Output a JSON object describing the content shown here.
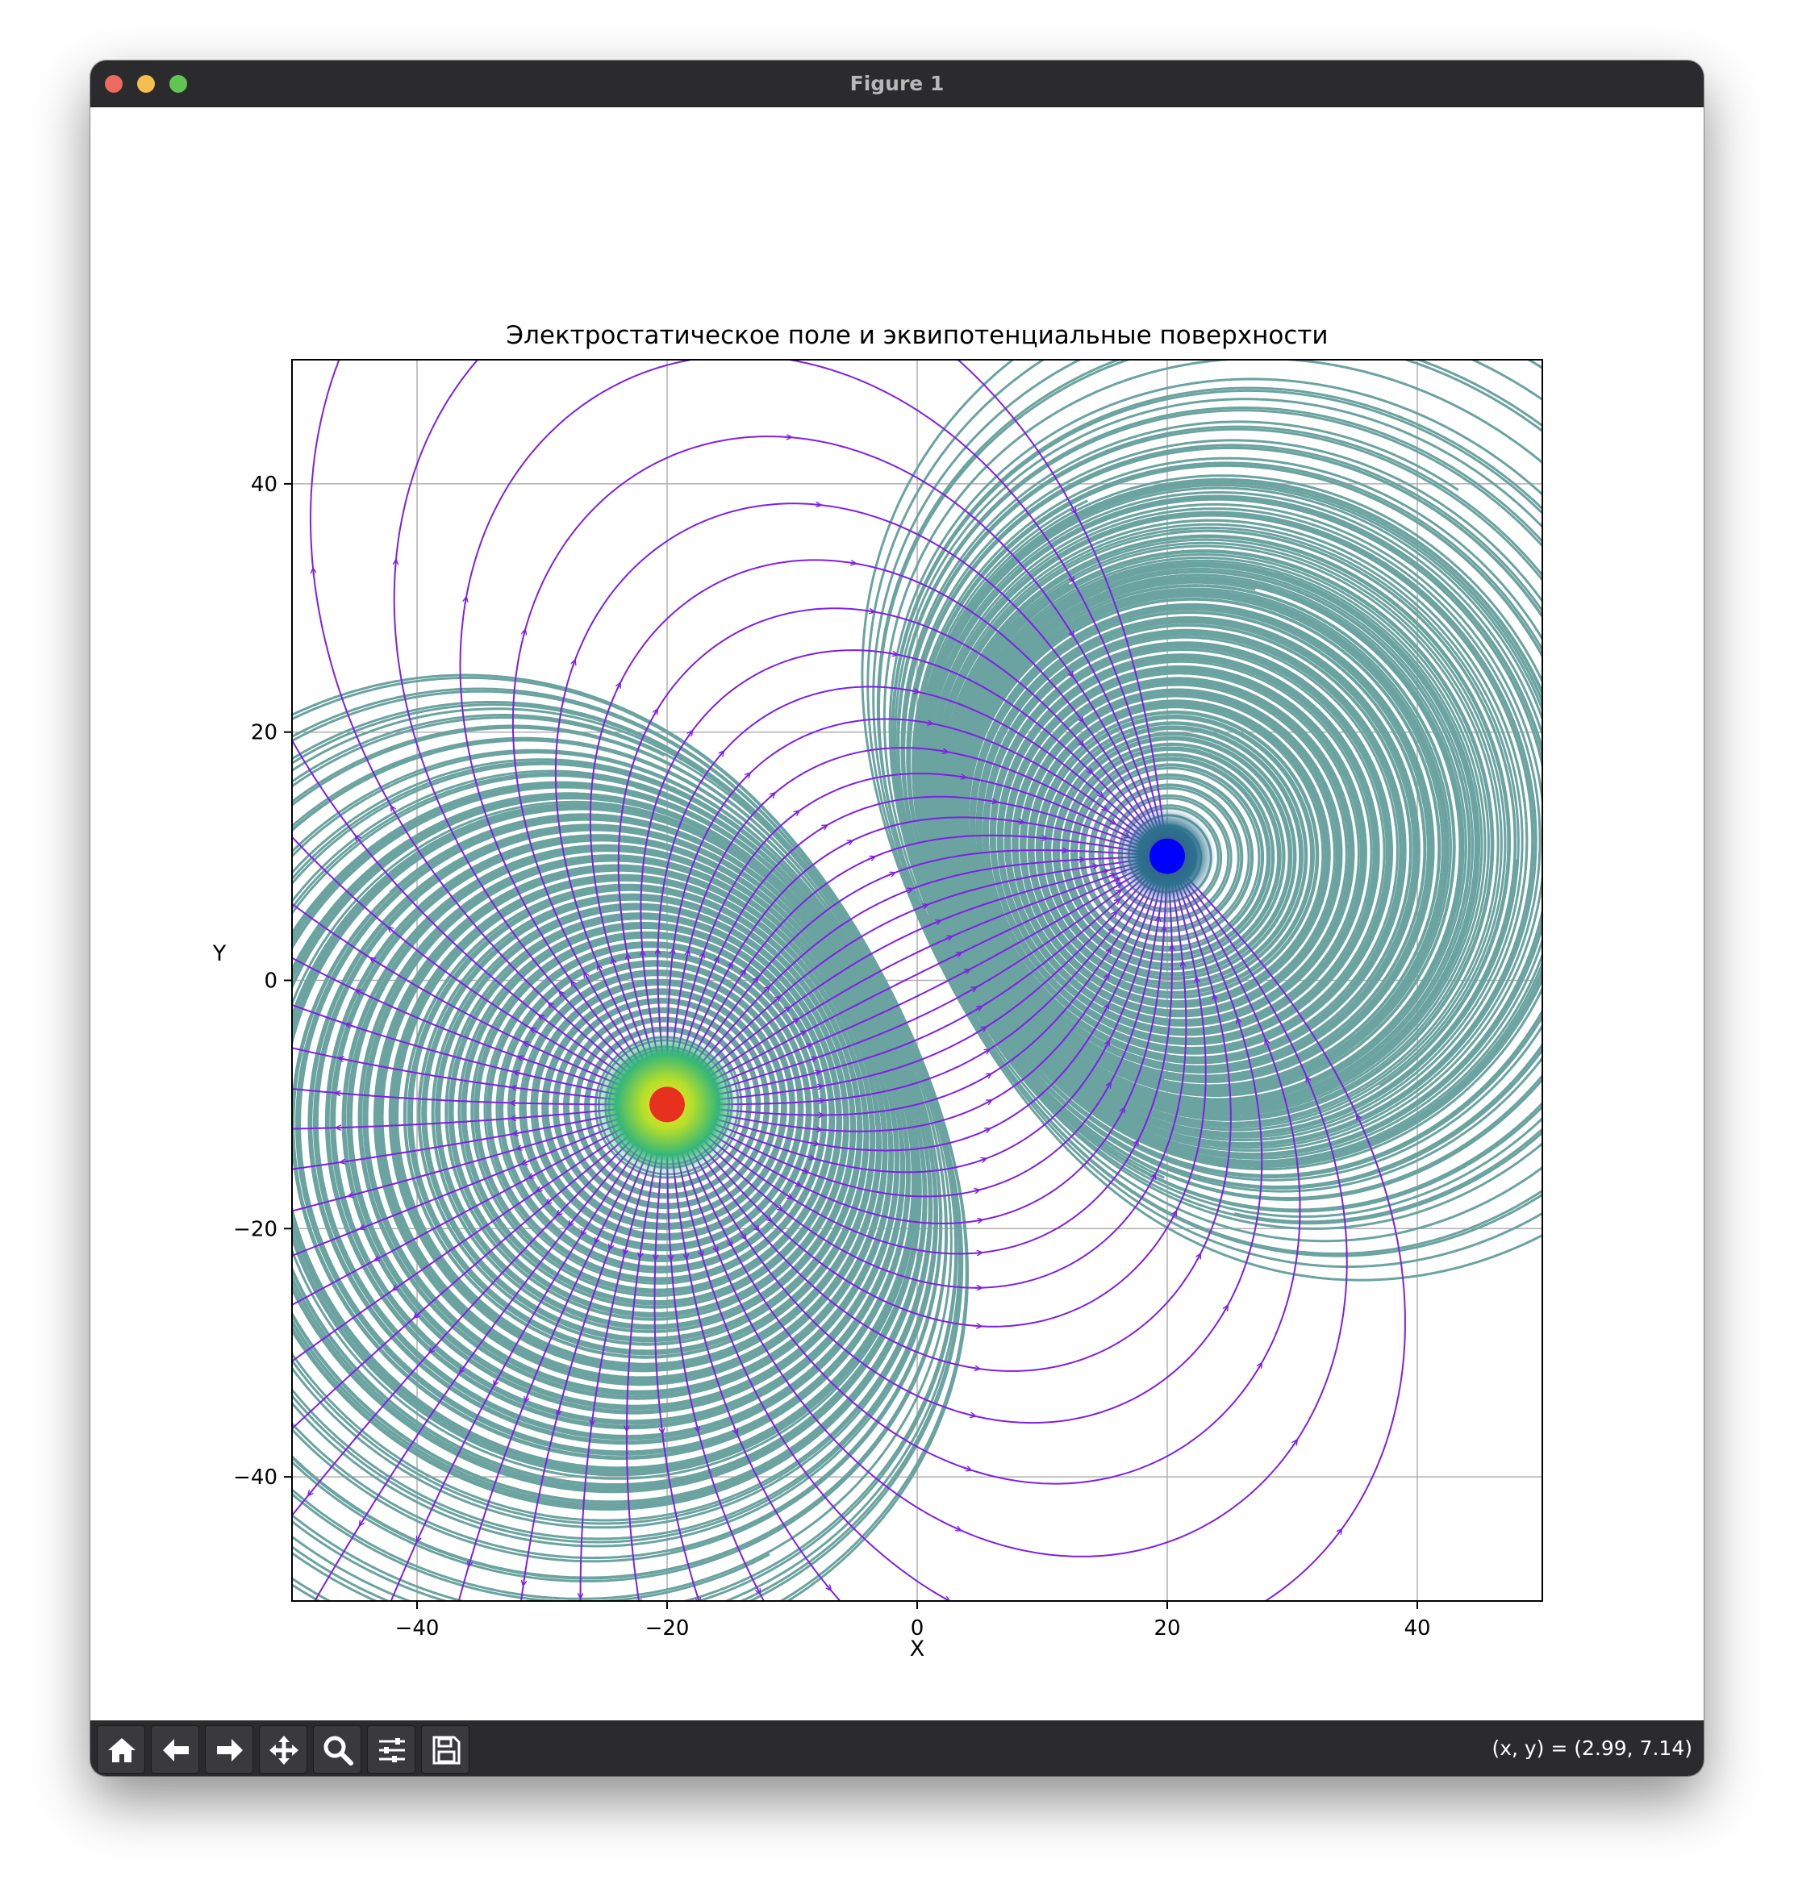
{
  "window": {
    "title": "Figure 1"
  },
  "toolbar": {
    "buttons": [
      {
        "name": "home",
        "icon": "home-icon"
      },
      {
        "name": "back",
        "icon": "arrow-left-icon"
      },
      {
        "name": "forward",
        "icon": "arrow-right-icon"
      },
      {
        "name": "pan",
        "icon": "move-icon"
      },
      {
        "name": "zoom",
        "icon": "magnifier-icon"
      },
      {
        "name": "configure",
        "icon": "sliders-icon"
      },
      {
        "name": "save",
        "icon": "floppy-icon"
      }
    ],
    "coords": "(x, y) = (2.99, 7.14)"
  },
  "chart_data": {
    "type": "streamplot+contour",
    "title": "Электростатическое поле и эквипотенциальные поверхности",
    "xlabel": "X",
    "ylabel": "Y",
    "xlim": [
      -50,
      50
    ],
    "ylim": [
      -50,
      50
    ],
    "xticks": [
      -40,
      -20,
      0,
      20,
      40
    ],
    "yticks": [
      -40,
      -20,
      0,
      20,
      40
    ],
    "xtick_labels": [
      "−40",
      "−20",
      "0",
      "20",
      "40"
    ],
    "ytick_labels": [
      "−40",
      "−20",
      "0",
      "20",
      "40"
    ],
    "grid": true,
    "charges": [
      {
        "x": -20,
        "y": -10,
        "color": "#e8301f"
      },
      {
        "x": 20,
        "y": 10,
        "color": "#0000ff"
      }
    ],
    "streamline_color": "#7f1fe6",
    "contour_color": "#6aa39f"
  }
}
